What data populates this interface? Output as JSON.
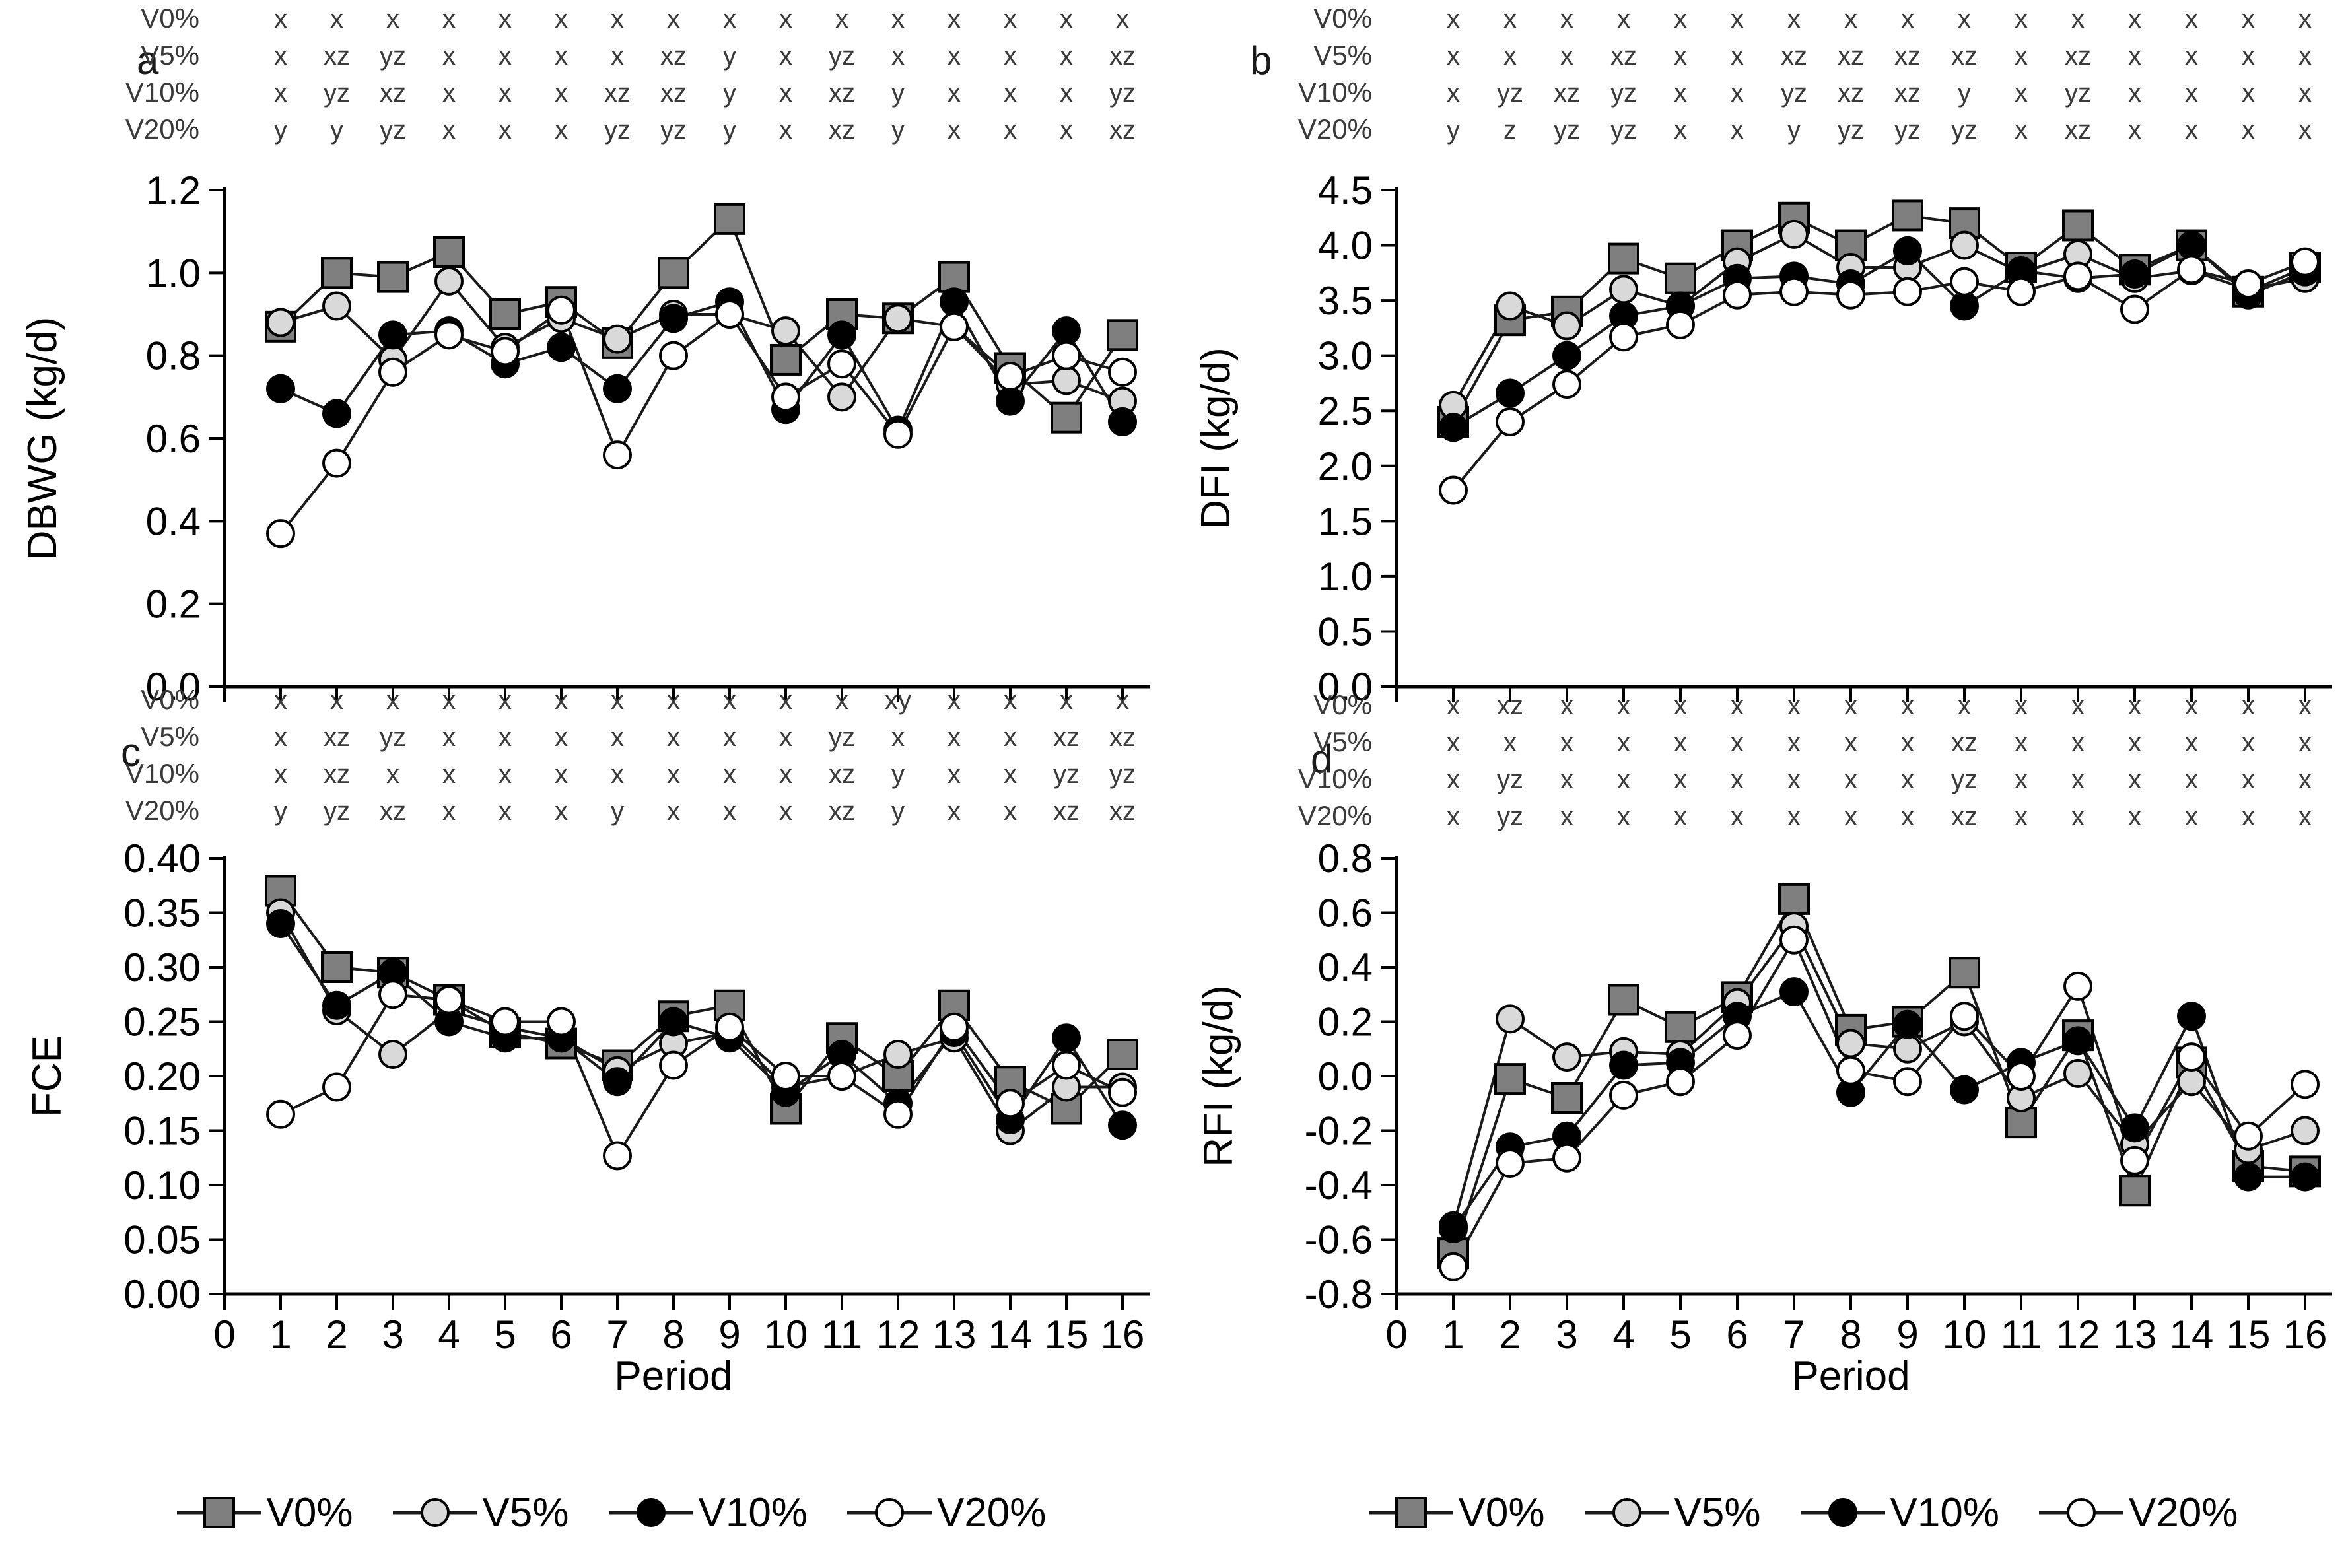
{
  "legend": {
    "items": [
      {
        "label": "V0%",
        "marker": "square",
        "fill": "#7f7f7f"
      },
      {
        "label": "V5%",
        "marker": "circle",
        "fill": "#d9d9d9"
      },
      {
        "label": "V10%",
        "marker": "circle",
        "fill": "#000000"
      },
      {
        "label": "V20%",
        "marker": "circle",
        "fill": "#ffffff"
      }
    ]
  },
  "chart_data": [
    {
      "id": "a",
      "panel_label": "a",
      "type": "line",
      "title": "",
      "ylabel": "DBWG (kg/d)",
      "xlabel": "",
      "ylim": [
        0,
        1.2
      ],
      "ystep": 0.2,
      "ydecimals": 1,
      "xlim": [
        0,
        16
      ],
      "show_x_tick_labels": false,
      "grid": false,
      "x": [
        1,
        2,
        3,
        4,
        5,
        6,
        7,
        8,
        9,
        10,
        11,
        12,
        13,
        14,
        15,
        16
      ],
      "series": [
        {
          "name": "V0%",
          "marker": "square",
          "fill": "#7f7f7f",
          "values": [
            0.87,
            1.0,
            0.99,
            1.05,
            0.9,
            0.93,
            0.83,
            1.0,
            1.13,
            0.79,
            0.9,
            0.89,
            0.99,
            0.77,
            0.65,
            0.85
          ]
        },
        {
          "name": "V5%",
          "marker": "circle",
          "fill": "#d9d9d9",
          "values": [
            0.88,
            0.92,
            0.79,
            0.98,
            0.82,
            0.89,
            0.84,
            0.9,
            0.9,
            0.86,
            0.7,
            0.89,
            0.87,
            0.73,
            0.74,
            0.69
          ]
        },
        {
          "name": "V10%",
          "marker": "circle",
          "fill": "#000000",
          "values": [
            0.72,
            0.66,
            0.85,
            0.86,
            0.78,
            0.82,
            0.72,
            0.89,
            0.93,
            0.67,
            0.85,
            0.62,
            0.93,
            0.69,
            0.86,
            0.64
          ]
        },
        {
          "name": "V20%",
          "marker": "circle",
          "fill": "#ffffff",
          "values": [
            0.37,
            0.54,
            0.76,
            0.85,
            0.81,
            0.91,
            0.56,
            0.8,
            0.9,
            0.7,
            0.78,
            0.61,
            0.87,
            0.75,
            0.8,
            0.76
          ]
        }
      ],
      "significance": [
        {
          "label": "V0%",
          "letters": [
            "x",
            "x",
            "x",
            "x",
            "x",
            "x",
            "x",
            "x",
            "x",
            "x",
            "x",
            "x",
            "x",
            "x",
            "x",
            "x"
          ]
        },
        {
          "label": "V5%",
          "letters": [
            "x",
            "xz",
            "yz",
            "x",
            "x",
            "x",
            "x",
            "xz",
            "y",
            "x",
            "yz",
            "x",
            "x",
            "x",
            "x",
            "xz"
          ]
        },
        {
          "label": "V10%",
          "letters": [
            "x",
            "yz",
            "xz",
            "x",
            "x",
            "x",
            "xz",
            "xz",
            "y",
            "x",
            "xz",
            "y",
            "x",
            "x",
            "x",
            "yz"
          ]
        },
        {
          "label": "V20%",
          "letters": [
            "y",
            "y",
            "yz",
            "x",
            "x",
            "x",
            "yz",
            "yz",
            "y",
            "x",
            "xz",
            "y",
            "x",
            "x",
            "x",
            "xz"
          ]
        }
      ]
    },
    {
      "id": "b",
      "panel_label": "b",
      "type": "line",
      "title": "",
      "ylabel": "DFI (kg/d)",
      "xlabel": "",
      "ylim": [
        0,
        4.5
      ],
      "ystep": 0.5,
      "ydecimals": 1,
      "xlim": [
        0,
        16
      ],
      "show_x_tick_labels": false,
      "grid": false,
      "x": [
        1,
        2,
        3,
        4,
        5,
        6,
        7,
        8,
        9,
        10,
        11,
        12,
        13,
        14,
        15,
        16
      ],
      "series": [
        {
          "name": "V0%",
          "marker": "square",
          "fill": "#7f7f7f",
          "values": [
            2.4,
            3.32,
            3.4,
            3.88,
            3.7,
            4.0,
            4.25,
            4.0,
            4.27,
            4.2,
            3.8,
            4.18,
            3.78,
            4.0,
            3.58,
            3.8
          ]
        },
        {
          "name": "V5%",
          "marker": "circle",
          "fill": "#d9d9d9",
          "values": [
            2.55,
            3.45,
            3.27,
            3.6,
            3.45,
            3.85,
            4.1,
            3.8,
            3.8,
            4.0,
            3.75,
            3.92,
            3.7,
            3.77,
            3.6,
            3.7
          ]
        },
        {
          "name": "V10%",
          "marker": "circle",
          "fill": "#000000",
          "values": [
            2.35,
            2.66,
            3.0,
            3.36,
            3.45,
            3.7,
            3.72,
            3.65,
            3.95,
            3.45,
            3.77,
            3.7,
            3.74,
            4.0,
            3.55,
            3.76
          ]
        },
        {
          "name": "V20%",
          "marker": "circle",
          "fill": "#ffffff",
          "values": [
            1.78,
            2.4,
            2.74,
            3.17,
            3.28,
            3.55,
            3.58,
            3.55,
            3.58,
            3.67,
            3.58,
            3.72,
            3.42,
            3.78,
            3.65,
            3.85
          ]
        }
      ],
      "significance": [
        {
          "label": "V0%",
          "letters": [
            "x",
            "x",
            "x",
            "x",
            "x",
            "x",
            "x",
            "x",
            "x",
            "x",
            "x",
            "x",
            "x",
            "x",
            "x",
            "x"
          ]
        },
        {
          "label": "V5%",
          "letters": [
            "x",
            "x",
            "x",
            "xz",
            "x",
            "x",
            "xz",
            "xz",
            "xz",
            "xz",
            "x",
            "xz",
            "x",
            "x",
            "x",
            "x"
          ]
        },
        {
          "label": "V10%",
          "letters": [
            "x",
            "yz",
            "xz",
            "yz",
            "x",
            "x",
            "yz",
            "xz",
            "xz",
            "y",
            "x",
            "yz",
            "x",
            "x",
            "x",
            "x"
          ]
        },
        {
          "label": "V20%",
          "letters": [
            "y",
            "z",
            "yz",
            "yz",
            "x",
            "x",
            "y",
            "yz",
            "yz",
            "yz",
            "x",
            "xz",
            "x",
            "x",
            "x",
            "x"
          ]
        }
      ]
    },
    {
      "id": "c",
      "panel_label": "c",
      "type": "line",
      "title": "",
      "ylabel": "FCE",
      "xlabel": "Period",
      "ylim": [
        0,
        0.4
      ],
      "ystep": 0.05,
      "ydecimals": 2,
      "xlim": [
        0,
        16
      ],
      "show_x_tick_labels": true,
      "grid": false,
      "x": [
        1,
        2,
        3,
        4,
        5,
        6,
        7,
        8,
        9,
        10,
        11,
        12,
        13,
        14,
        15,
        16
      ],
      "series": [
        {
          "name": "V0%",
          "marker": "square",
          "fill": "#7f7f7f",
          "values": [
            0.37,
            0.3,
            0.295,
            0.27,
            0.24,
            0.23,
            0.21,
            0.255,
            0.265,
            0.17,
            0.235,
            0.2,
            0.265,
            0.195,
            0.17,
            0.22
          ]
        },
        {
          "name": "V5%",
          "marker": "circle",
          "fill": "#d9d9d9",
          "values": [
            0.35,
            0.26,
            0.22,
            0.26,
            0.245,
            0.235,
            0.205,
            0.23,
            0.24,
            0.19,
            0.2,
            0.22,
            0.235,
            0.15,
            0.19,
            0.19
          ]
        },
        {
          "name": "V10%",
          "marker": "circle",
          "fill": "#000000",
          "values": [
            0.34,
            0.265,
            0.295,
            0.25,
            0.235,
            0.235,
            0.195,
            0.25,
            0.235,
            0.185,
            0.22,
            0.175,
            0.24,
            0.16,
            0.235,
            0.155
          ]
        },
        {
          "name": "V20%",
          "marker": "circle",
          "fill": "#ffffff",
          "values": [
            0.165,
            0.19,
            0.275,
            0.27,
            0.25,
            0.25,
            0.127,
            0.21,
            0.245,
            0.2,
            0.2,
            0.165,
            0.245,
            0.175,
            0.21,
            0.185
          ]
        }
      ],
      "significance": [
        {
          "label": "V0%",
          "letters": [
            "x",
            "x",
            "x",
            "x",
            "x",
            "x",
            "x",
            "x",
            "x",
            "x",
            "x",
            "xy",
            "x",
            "x",
            "x",
            "x"
          ]
        },
        {
          "label": "V5%",
          "letters": [
            "x",
            "xz",
            "yz",
            "x",
            "x",
            "x",
            "x",
            "x",
            "x",
            "x",
            "yz",
            "x",
            "x",
            "x",
            "xz",
            "xz"
          ]
        },
        {
          "label": "V10%",
          "letters": [
            "x",
            "xz",
            "x",
            "x",
            "x",
            "x",
            "x",
            "x",
            "x",
            "x",
            "xz",
            "y",
            "x",
            "x",
            "yz",
            "yz"
          ]
        },
        {
          "label": "V20%",
          "letters": [
            "y",
            "yz",
            "xz",
            "x",
            "x",
            "x",
            "y",
            "x",
            "x",
            "x",
            "xz",
            "y",
            "x",
            "x",
            "xz",
            "xz"
          ]
        }
      ]
    },
    {
      "id": "d",
      "panel_label": "d",
      "type": "line",
      "title": "",
      "ylabel": "RFI (kg/d)",
      "xlabel": "Period",
      "ylim": [
        -0.8,
        0.8
      ],
      "ystep": 0.2,
      "ydecimals": 1,
      "xlim": [
        0,
        16
      ],
      "show_x_tick_labels": true,
      "grid": false,
      "x": [
        1,
        2,
        3,
        4,
        5,
        6,
        7,
        8,
        9,
        10,
        11,
        12,
        13,
        14,
        15,
        16
      ],
      "series": [
        {
          "name": "V0%",
          "marker": "square",
          "fill": "#7f7f7f",
          "values": [
            -0.65,
            -0.01,
            -0.08,
            0.28,
            0.18,
            0.29,
            0.65,
            0.17,
            0.2,
            0.38,
            -0.17,
            0.15,
            -0.42,
            0.05,
            -0.33,
            -0.35
          ]
        },
        {
          "name": "V5%",
          "marker": "circle",
          "fill": "#d9d9d9",
          "values": [
            -0.55,
            0.21,
            0.07,
            0.09,
            0.08,
            0.27,
            0.55,
            0.12,
            0.1,
            0.2,
            -0.08,
            0.01,
            -0.25,
            -0.02,
            -0.27,
            -0.2
          ]
        },
        {
          "name": "V10%",
          "marker": "circle",
          "fill": "#000000",
          "values": [
            -0.56,
            -0.26,
            -0.22,
            0.04,
            0.05,
            0.22,
            0.31,
            -0.06,
            0.19,
            -0.05,
            0.05,
            0.13,
            -0.19,
            0.22,
            -0.37,
            -0.37
          ]
        },
        {
          "name": "V20%",
          "marker": "circle",
          "fill": "#ffffff",
          "values": [
            -0.7,
            -0.32,
            -0.3,
            -0.07,
            -0.02,
            0.15,
            0.5,
            0.02,
            -0.02,
            0.22,
            0.0,
            0.33,
            -0.31,
            0.07,
            -0.22,
            -0.03
          ]
        }
      ],
      "significance": [
        {
          "label": "V0%",
          "letters": [
            "x",
            "xz",
            "x",
            "x",
            "x",
            "x",
            "x",
            "x",
            "x",
            "x",
            "x",
            "x",
            "x",
            "x",
            "x",
            "x"
          ]
        },
        {
          "label": "V5%",
          "letters": [
            "x",
            "x",
            "x",
            "x",
            "x",
            "x",
            "x",
            "x",
            "x",
            "xz",
            "x",
            "x",
            "x",
            "x",
            "x",
            "x"
          ]
        },
        {
          "label": "V10%",
          "letters": [
            "x",
            "yz",
            "x",
            "x",
            "x",
            "x",
            "x",
            "x",
            "x",
            "yz",
            "x",
            "x",
            "x",
            "x",
            "x",
            "x"
          ]
        },
        {
          "label": "V20%",
          "letters": [
            "x",
            "yz",
            "x",
            "x",
            "x",
            "x",
            "x",
            "x",
            "x",
            "xz",
            "x",
            "x",
            "x",
            "x",
            "x",
            "x"
          ]
        }
      ]
    }
  ]
}
